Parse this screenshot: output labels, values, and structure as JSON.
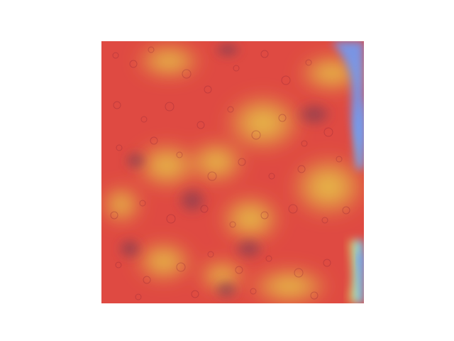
{
  "image": {
    "description_type": "microscopy heatmap overlay",
    "colors": {
      "base_red": "#e03a3a",
      "hot_yellow": "#e8cf45",
      "cool_blue": "#6f9cf5",
      "cyan": "#6fe3e0",
      "background": "#ffffff"
    }
  }
}
